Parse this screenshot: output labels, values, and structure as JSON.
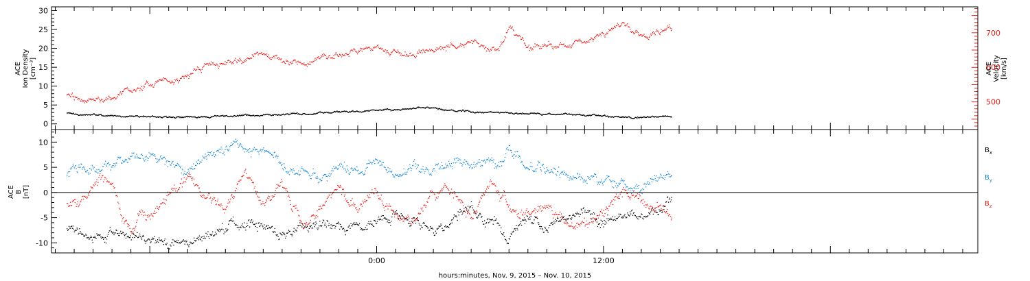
{
  "chart_data": [
    {
      "id": "top",
      "type": "scatter",
      "title": "",
      "grid": false,
      "ylim_left": [
        -1.5,
        31
      ],
      "ylim_right": [
        420,
        775
      ],
      "left_ylabel_lines": [
        "ACE",
        "Ion Density",
        "[cm⁻³]"
      ],
      "right_ylabel_lines": [
        "ACE",
        "Velocity",
        "[km/s]"
      ],
      "left_ticks": [
        0,
        5,
        10,
        15,
        20,
        25,
        30
      ],
      "right_ticks": [
        500,
        600,
        700
      ],
      "series": [
        {
          "key": "density",
          "axis": "left",
          "color": "#000000",
          "x": [
            -16.4,
            -15,
            -13,
            -11,
            -9,
            -7,
            -5,
            -3.5,
            -2,
            -0.5,
            1,
            2.5,
            4,
            5.5,
            7,
            8.5,
            10,
            11,
            12,
            13,
            14,
            15.6
          ],
          "y": [
            2.8,
            2.3,
            2.0,
            1.9,
            2.0,
            2.3,
            2.6,
            2.9,
            3.2,
            3.6,
            3.8,
            4.5,
            3.6,
            3.2,
            3.0,
            2.8,
            2.6,
            2.4,
            2.3,
            2.0,
            1.9,
            2.2
          ]
        },
        {
          "key": "velocity",
          "axis": "right",
          "color": "#e8201c",
          "x": [
            -16.4,
            -15.5,
            -15,
            -14.5,
            -14,
            -13,
            -12,
            -11,
            -10,
            -9,
            -8,
            -7,
            -6,
            -5,
            -4,
            -3,
            -2,
            -1,
            0,
            1,
            2,
            3,
            4,
            5,
            6,
            6.5,
            7,
            7.5,
            8,
            9,
            10,
            11,
            12,
            13,
            14,
            15,
            15.6
          ],
          "y": [
            520,
            510,
            510,
            505,
            512,
            545,
            550,
            560,
            575,
            600,
            615,
            625,
            645,
            620,
            610,
            625,
            640,
            650,
            655,
            650,
            640,
            645,
            665,
            670,
            650,
            665,
            710,
            690,
            655,
            660,
            665,
            680,
            705,
            725,
            700,
            700,
            720
          ]
        }
      ]
    },
    {
      "id": "bottom",
      "type": "scatter",
      "title": "",
      "grid": false,
      "ylim": [
        -12,
        12.5
      ],
      "ylabel_lines": [
        "ACE",
        "B",
        "[nT]"
      ],
      "left_ticks": [
        -10,
        -5,
        0,
        5,
        10
      ],
      "zero_line": true,
      "series": [
        {
          "key": "bx",
          "name": "B",
          "subscript": "x",
          "color": "#000000",
          "x": [
            -16.4,
            -15,
            -14,
            -13,
            -12,
            -11,
            -10,
            -9,
            -8,
            -7,
            -6,
            -5,
            -4,
            -3,
            -2,
            -1,
            0,
            1,
            2,
            3,
            4,
            5,
            6,
            7,
            8,
            9,
            10,
            11,
            12,
            13,
            14,
            15,
            15.6
          ],
          "y": [
            -7.5,
            -8.5,
            -9,
            -8,
            -9.5,
            -10,
            -9.5,
            -8,
            -7,
            -6,
            -6.5,
            -8,
            -7,
            -6,
            -5.5,
            -7,
            -6,
            -4,
            -6,
            -8,
            -5,
            -3,
            -5,
            -9,
            -5,
            -6.5,
            -5.5,
            -4,
            -6,
            -5,
            -5,
            -4,
            -1
          ]
        },
        {
          "key": "by",
          "name": "B",
          "subscript": "y",
          "color": "#1a8ad4",
          "x": [
            -16.4,
            -15.5,
            -15,
            -14,
            -13,
            -12,
            -11,
            -10,
            -9,
            -8,
            -7,
            -6,
            -5,
            -4,
            -3,
            -2,
            -1,
            0,
            1,
            2,
            3,
            4,
            5,
            6,
            6.5,
            7,
            8,
            9,
            10,
            11,
            12,
            13,
            14,
            15,
            15.6
          ],
          "y": [
            4,
            4.5,
            5,
            6,
            7.5,
            7.5,
            6,
            5,
            7,
            9.5,
            8,
            9,
            5,
            4,
            3,
            5,
            4,
            6,
            4,
            5,
            4,
            6,
            5,
            7,
            5,
            9,
            6,
            5,
            4,
            3,
            2,
            2,
            1,
            3,
            3
          ]
        },
        {
          "key": "bz",
          "name": "B",
          "subscript": "z",
          "color": "#e8201c",
          "x": [
            -16.4,
            -15.5,
            -15,
            -14.5,
            -14,
            -13.5,
            -13,
            -12.5,
            -12,
            -11,
            -10,
            -9,
            -8,
            -7,
            -6,
            -5,
            -4,
            -3,
            -2,
            -1,
            0,
            1,
            2,
            3,
            4,
            5,
            6,
            7,
            8,
            9,
            10,
            11,
            12,
            13,
            14,
            15,
            15.6
          ],
          "y": [
            -2,
            -2,
            0,
            3,
            2,
            -5,
            -7,
            -4,
            -5,
            -1,
            3,
            -2,
            -3,
            5,
            -2,
            2,
            -6,
            -4,
            2,
            -3,
            0,
            -4,
            -6,
            0,
            1,
            -5,
            2,
            -3,
            -5,
            -2,
            -6,
            -7,
            -4,
            0,
            -1,
            -3,
            -6
          ]
        }
      ]
    }
  ],
  "x_axis": {
    "range_hours": [
      -17.2,
      31.8
    ],
    "label": "hours:minutes, Nov.  9, 2015 – Nov. 10, 2015",
    "tick_labels": [
      {
        "x": 0,
        "label": "0:00"
      },
      {
        "x": 12,
        "label": "12:00"
      }
    ]
  },
  "colors": {
    "black": "#000000",
    "red": "#e8201c",
    "blue": "#1a8ad4"
  }
}
